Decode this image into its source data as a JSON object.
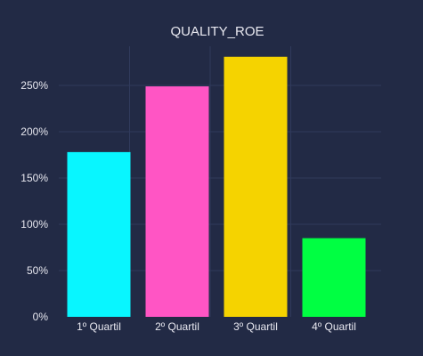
{
  "chart_data": {
    "type": "bar",
    "title": "QUALITY_ROE",
    "categories": [
      "1º Quartil",
      "2º Quartil",
      "3º Quartil",
      "4º Quartil"
    ],
    "values": [
      178,
      249,
      281,
      85
    ],
    "colors": [
      "#08f6ff",
      "#ff55c4",
      "#f5d300",
      "#00ff42"
    ],
    "yunit": "%",
    "yticks": [
      0,
      50,
      100,
      150,
      200,
      250
    ],
    "ytick_labels": [
      "0%",
      "50%",
      "100%",
      "150%",
      "200%",
      "250%"
    ],
    "ylim": [
      0,
      295
    ],
    "xlabel": "",
    "ylabel": "",
    "grid": true,
    "background": "#222a45",
    "legend": "none"
  }
}
